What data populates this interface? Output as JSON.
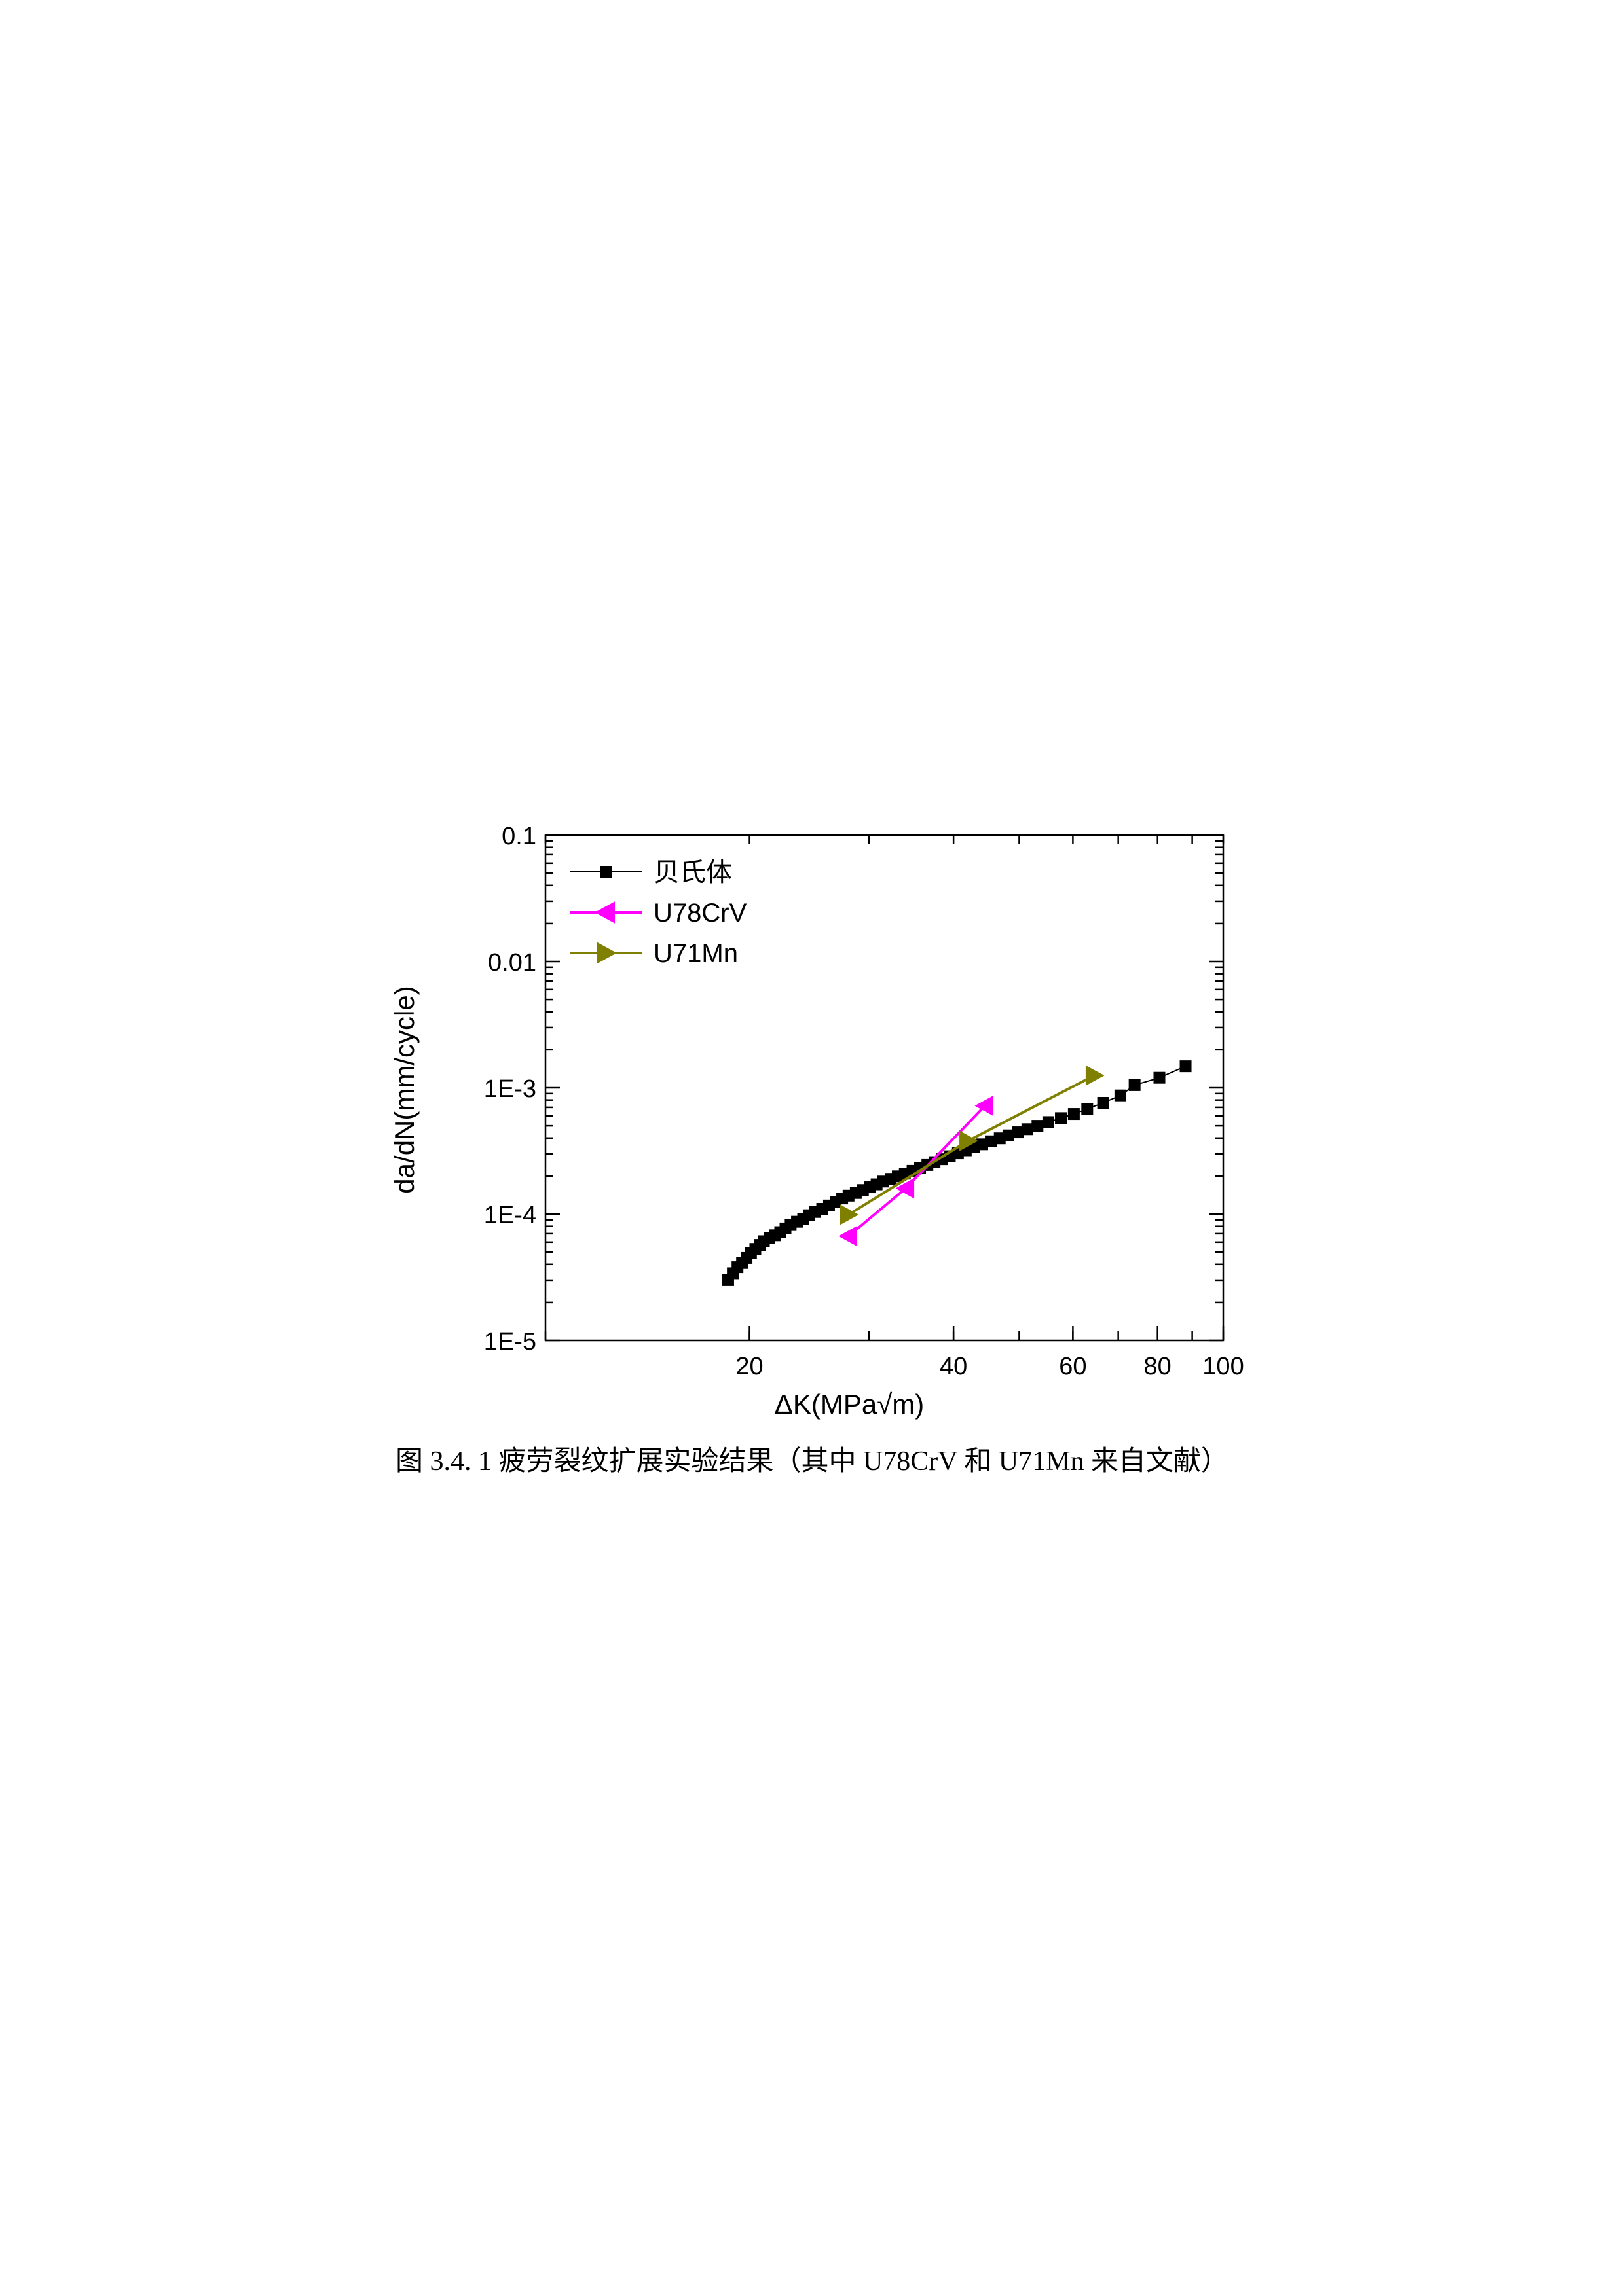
{
  "caption": "图 3.4. 1 疲劳裂纹扩展实验结果（其中 U78CrV 和 U71Mn 来自文献）",
  "chart_data": {
    "type": "scatter",
    "xscale": "log",
    "yscale": "log",
    "xlim": [
      10,
      100
    ],
    "ylim": [
      1e-05,
      0.1
    ],
    "xlabel": "ΔK(MPa√m)",
    "ylabel": "da/dN(mm/cycle)",
    "xticks": [
      {
        "value": 20,
        "label": "20"
      },
      {
        "value": 40,
        "label": "40"
      },
      {
        "value": 60,
        "label": "60"
      },
      {
        "value": 80,
        "label": "80"
      },
      {
        "value": 100,
        "label": "100"
      }
    ],
    "yticks": [
      {
        "value": 0.1,
        "label": "0.1"
      },
      {
        "value": 0.01,
        "label": "0.01"
      },
      {
        "value": 0.001,
        "label": "1E-3"
      },
      {
        "value": 0.0001,
        "label": "1E-4"
      },
      {
        "value": 1e-05,
        "label": "1E-5"
      }
    ],
    "legend_position": "top-left",
    "series": [
      {
        "name": "贝氏体",
        "color": "#000000",
        "marker": "square",
        "points": [
          [
            18.6,
            3e-05
          ],
          [
            18.9,
            3.4e-05
          ],
          [
            19.2,
            3.8e-05
          ],
          [
            19.5,
            4.1e-05
          ],
          [
            19.8,
            4.5e-05
          ],
          [
            20.1,
            4.9e-05
          ],
          [
            20.4,
            5.3e-05
          ],
          [
            20.7,
            5.7e-05
          ],
          [
            21.0,
            6.1e-05
          ],
          [
            21.4,
            6.5e-05
          ],
          [
            21.8,
            6.8e-05
          ],
          [
            22.2,
            7.2e-05
          ],
          [
            22.6,
            7.7e-05
          ],
          [
            23.0,
            8.2e-05
          ],
          [
            23.5,
            8.7e-05
          ],
          [
            24.0,
            9.2e-05
          ],
          [
            24.5,
            9.8e-05
          ],
          [
            25.0,
            0.000104
          ],
          [
            25.6,
            0.00011
          ],
          [
            26.2,
            0.000117
          ],
          [
            26.8,
            0.000125
          ],
          [
            27.4,
            0.000133
          ],
          [
            28.0,
            0.00014
          ],
          [
            28.7,
            0.000147
          ],
          [
            29.4,
            0.000155
          ],
          [
            30.1,
            0.000163
          ],
          [
            30.8,
            0.000172
          ],
          [
            31.5,
            0.000181
          ],
          [
            32.3,
            0.00019
          ],
          [
            33.1,
            0.000199
          ],
          [
            33.9,
            0.000209
          ],
          [
            34.8,
            0.00022
          ],
          [
            35.7,
            0.000232
          ],
          [
            36.6,
            0.000245
          ],
          [
            37.5,
            0.000258
          ],
          [
            38.5,
            0.000272
          ],
          [
            39.5,
            0.000287
          ],
          [
            40.6,
            0.000303
          ],
          [
            41.7,
            0.00032
          ],
          [
            42.9,
            0.000338
          ],
          [
            44.1,
            0.000357
          ],
          [
            45.4,
            0.000377
          ],
          [
            46.8,
            0.000398
          ],
          [
            48.2,
            0.00042
          ],
          [
            49.8,
            0.000444
          ],
          [
            51.4,
            0.00047
          ],
          [
            53.2,
            0.0005
          ],
          [
            55.2,
            0.000535
          ],
          [
            57.6,
            0.000575
          ],
          [
            60.2,
            0.00062
          ],
          [
            63.0,
            0.00068
          ],
          [
            66.5,
            0.00076
          ],
          [
            70.5,
            0.00087
          ],
          [
            74.0,
            0.00105
          ],
          [
            80.5,
            0.0012
          ],
          [
            88.0,
            0.00148
          ]
        ]
      },
      {
        "name": "U78CrV",
        "color": "#ff00ff",
        "marker": "triangle-left",
        "points": [
          [
            28.0,
            6.7e-05
          ],
          [
            34.0,
            0.00016
          ],
          [
            44.5,
            0.00072
          ]
        ]
      },
      {
        "name": "U71Mn",
        "color": "#808000",
        "marker": "triangle-right",
        "points": [
          [
            28.0,
            9.9e-05
          ],
          [
            42.0,
            0.00038
          ],
          [
            64.5,
            0.00125
          ]
        ]
      }
    ]
  }
}
